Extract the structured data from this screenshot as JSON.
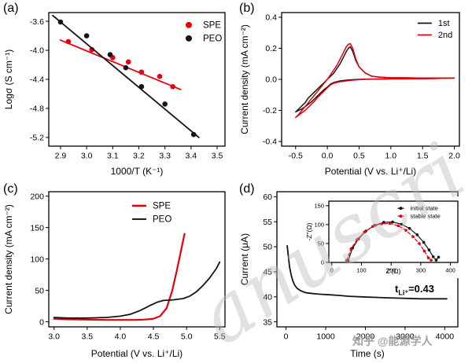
{
  "panels": {
    "a": {
      "label": "(a)"
    },
    "b": {
      "label": "(b)"
    },
    "c": {
      "label": "(c)"
    },
    "d": {
      "label": "(d)",
      "annotation": {
        "base": "t",
        "sub": "Li⁺",
        "rest": "=0.43"
      }
    }
  },
  "watermarks": {
    "diagonal": "anuscri",
    "credit": "知乎 @能源学人"
  },
  "chart_data": [
    {
      "id": "a",
      "type": "scatter",
      "xlabel": "1000/T (K⁻¹)",
      "ylabel": "Logσ (S cm⁻¹)",
      "xlim": [
        2.855,
        3.53
      ],
      "ylim": [
        -5.32,
        -3.48
      ],
      "xticks": [
        "2.9",
        "3.0",
        "3.1",
        "3.2",
        "3.3",
        "3.4",
        "3.5"
      ],
      "yticks": [
        "-3.6",
        "-4.0",
        "-4.4",
        "-4.8",
        "-5.2"
      ],
      "legend": {
        "position": "top-right",
        "entries": [
          {
            "label": "SPE",
            "color": "#e8000b",
            "marker": "circle"
          },
          {
            "label": "PEO",
            "color": "#141414",
            "marker": "circle"
          }
        ]
      },
      "series": [
        {
          "name": "SPE fit",
          "type": "line",
          "color": "#e8000b",
          "lw": 1.8,
          "x": [
            2.9,
            3.36
          ],
          "y": [
            -3.86,
            -4.54
          ]
        },
        {
          "name": "SPE",
          "type": "scatter",
          "color": "#e8000b",
          "x": [
            2.93,
            3.02,
            3.1,
            3.16,
            3.21,
            3.28,
            3.33
          ],
          "y": [
            -3.88,
            -3.99,
            -4.1,
            -4.16,
            -4.3,
            -4.36,
            -4.5
          ]
        },
        {
          "name": "PEO fit",
          "type": "line",
          "color": "#141414",
          "lw": 1.8,
          "x": [
            2.87,
            3.43
          ],
          "y": [
            -3.52,
            -5.2
          ]
        },
        {
          "name": "PEO",
          "type": "scatter",
          "color": "#141414",
          "x": [
            2.9,
            3.0,
            3.09,
            3.15,
            3.21,
            3.3,
            3.41
          ],
          "y": [
            -3.61,
            -3.8,
            -4.06,
            -4.24,
            -4.5,
            -4.74,
            -5.16
          ]
        }
      ]
    },
    {
      "id": "b",
      "type": "line",
      "xlabel": "Potential (V vs. Li⁺/Li)",
      "ylabel": "Current density (mA cm⁻²)",
      "xlim": [
        -0.72,
        2.08
      ],
      "ylim": [
        -0.43,
        0.43
      ],
      "xticks": [
        "-0.5",
        "0.0",
        "0.5",
        "1.0",
        "1.5",
        "2.0"
      ],
      "yticks": [
        "-0.4",
        "-0.2",
        "0.0",
        "0.2",
        "0.4"
      ],
      "legend": {
        "position": "top-right",
        "entries": [
          {
            "label": "1st",
            "color": "#141414",
            "marker": "line",
            "lw": 1.8
          },
          {
            "label": "2nd",
            "color": "#e8000b",
            "marker": "line",
            "lw": 1.8
          }
        ]
      },
      "series": [
        {
          "name": "1st",
          "type": "line",
          "color": "#141414",
          "lw": 1.5,
          "x": [
            -0.5,
            -0.45,
            -0.4,
            -0.35,
            -0.3,
            -0.25,
            -0.2,
            -0.15,
            -0.1,
            -0.05,
            0,
            0.05,
            0.1,
            0.15,
            0.2,
            0.25,
            0.3,
            0.33,
            0.36,
            0.4,
            0.45,
            0.5,
            0.6,
            0.7,
            0.8,
            1,
            1.2,
            1.5,
            2,
            1.5,
            1,
            0.8,
            0.6,
            0.5,
            0.4,
            0.3,
            0.2,
            0.1,
            0.05,
            0,
            -0.05,
            -0.1,
            -0.15,
            -0.2,
            -0.25,
            -0.3,
            -0.35,
            -0.4,
            -0.45,
            -0.5
          ],
          "y": [
            -0.21,
            -0.19,
            -0.17,
            -0.15,
            -0.12,
            -0.1,
            -0.08,
            -0.06,
            -0.04,
            -0.02,
            0,
            0.02,
            0.04,
            0.07,
            0.1,
            0.14,
            0.18,
            0.2,
            0.21,
            0.18,
            0.12,
            0.08,
            0.04,
            0.02,
            0.015,
            0.01,
            0.01,
            0.008,
            0.008,
            0.004,
            0.003,
            0.002,
            0.001,
            0,
            -0.002,
            -0.005,
            -0.01,
            -0.02,
            -0.03,
            -0.05,
            -0.065,
            -0.085,
            -0.105,
            -0.125,
            -0.145,
            -0.16,
            -0.175,
            -0.19,
            -0.2,
            -0.21
          ]
        },
        {
          "name": "2nd",
          "type": "line",
          "color": "#e8000b",
          "lw": 1.5,
          "x": [
            -0.5,
            -0.45,
            -0.4,
            -0.35,
            -0.3,
            -0.25,
            -0.2,
            -0.15,
            -0.1,
            -0.05,
            0,
            0.05,
            0.1,
            0.15,
            0.2,
            0.25,
            0.3,
            0.33,
            0.36,
            0.4,
            0.45,
            0.5,
            0.6,
            0.7,
            0.8,
            1,
            1.2,
            1.5,
            2,
            1.5,
            1,
            0.8,
            0.6,
            0.5,
            0.4,
            0.3,
            0.2,
            0.1,
            0.05,
            0,
            -0.05,
            -0.1,
            -0.15,
            -0.2,
            -0.25,
            -0.3,
            -0.35,
            -0.4,
            -0.45,
            -0.5
          ],
          "y": [
            -0.245,
            -0.225,
            -0.2,
            -0.175,
            -0.15,
            -0.125,
            -0.1,
            -0.075,
            -0.05,
            -0.025,
            0,
            0.03,
            0.06,
            0.09,
            0.13,
            0.17,
            0.21,
            0.225,
            0.23,
            0.2,
            0.13,
            0.08,
            0.04,
            0.02,
            0.015,
            0.01,
            0.01,
            0.008,
            0.008,
            0.004,
            0.003,
            0.002,
            0,
            -0.002,
            -0.005,
            -0.01,
            -0.015,
            -0.025,
            -0.035,
            -0.055,
            -0.075,
            -0.095,
            -0.115,
            -0.14,
            -0.16,
            -0.18,
            -0.2,
            -0.215,
            -0.23,
            -0.245
          ]
        }
      ]
    },
    {
      "id": "c",
      "type": "line",
      "xlabel": "Potential (V vs. Li⁺/Li)",
      "ylabel": "Current density (mA cm⁻²)",
      "xlim": [
        2.92,
        5.58
      ],
      "ylim": [
        -8,
        207
      ],
      "xticks": [
        "3.0",
        "3.5",
        "4.0",
        "4.5",
        "5.0",
        "5.5"
      ],
      "yticks": [
        "0",
        "50",
        "100",
        "150",
        "200"
      ],
      "legend": {
        "position": "upper-middle-right",
        "entries": [
          {
            "label": "SPE",
            "color": "#e8000b",
            "marker": "line",
            "lw": 2.5
          },
          {
            "label": "PEO",
            "color": "#141414",
            "marker": "line",
            "lw": 2
          }
        ]
      },
      "series": [
        {
          "name": "SPE",
          "type": "line",
          "color": "#e8000b",
          "lw": 2.2,
          "x": [
            3,
            3.2,
            3.5,
            3.8,
            4,
            4.2,
            4.35,
            4.5,
            4.6,
            4.7,
            4.78,
            4.85,
            4.92,
            4.97
          ],
          "y": [
            5,
            4,
            3.5,
            3,
            3,
            3,
            3.5,
            5,
            9,
            22,
            48,
            80,
            115,
            140
          ]
        },
        {
          "name": "PEO",
          "type": "line",
          "color": "#141414",
          "lw": 1.8,
          "x": [
            3,
            3.2,
            3.5,
            3.8,
            4,
            4.15,
            4.3,
            4.45,
            4.55,
            4.65,
            4.8,
            4.95,
            5.05,
            5.15,
            5.25,
            5.35,
            5.45,
            5.5
          ],
          "y": [
            7,
            6,
            6,
            7,
            9,
            12,
            18,
            26,
            31,
            34,
            35,
            37,
            41,
            48,
            58,
            70,
            85,
            95
          ]
        }
      ]
    },
    {
      "id": "d",
      "type": "line",
      "xlabel": "Time (s)",
      "ylabel": "Current (μA)",
      "xlim": [
        -230,
        4330
      ],
      "ylim": [
        34,
        61
      ],
      "xticks": [
        "0",
        "1000",
        "2000",
        "3000",
        "4000"
      ],
      "yticks": [
        "35",
        "40",
        "45",
        "50",
        "55",
        "60"
      ],
      "series": [
        {
          "name": "polarization current",
          "type": "line",
          "color": "#141414",
          "lw": 1.8,
          "x": [
            30,
            60,
            90,
            130,
            170,
            220,
            280,
            350,
            430,
            520,
            620,
            750,
            900,
            1100,
            1300,
            1600,
            1900,
            2200,
            2600,
            3000,
            3400,
            3800,
            4050
          ],
          "y": [
            50.2,
            48,
            46,
            44.3,
            43.2,
            42.3,
            41.7,
            41.3,
            41,
            40.8,
            40.7,
            40.6,
            40.5,
            40.4,
            40.3,
            40.1,
            40,
            39.9,
            39.8,
            39.7,
            39.6,
            39.6,
            39.6
          ]
        }
      ]
    },
    {
      "id": "inset",
      "type": "line",
      "xlabel": "Z'(Ω)",
      "ylabel": "-Z''(Ω)",
      "xlim": [
        -10,
        425
      ],
      "ylim": [
        0,
        162
      ],
      "xticks": [
        "0",
        "100",
        "200",
        "300",
        "400"
      ],
      "yticks": [
        "0",
        "50",
        "100",
        "150"
      ],
      "legend": {
        "position": "top-right",
        "entries": [
          {
            "label": "initial state",
            "color": "#141414",
            "marker": "line-dot",
            "lw": 1.3
          },
          {
            "label": "stable state",
            "color": "#e8000b",
            "marker": "line-dot",
            "lw": 1.3,
            "dash": true
          }
        ]
      },
      "series": [
        {
          "name": "initial state",
          "type": "line",
          "color": "#141414",
          "lw": 1.2,
          "markers": true,
          "x": [
            55,
            70,
            90,
            115,
            145,
            175,
            205,
            235,
            262,
            288,
            310,
            328,
            342,
            352,
            360
          ],
          "y": [
            5,
            38,
            62,
            83,
            98,
            106,
            107,
            101,
            90,
            73,
            53,
            33,
            15,
            6,
            14
          ]
        },
        {
          "name": "stable state",
          "type": "line",
          "color": "#e8000b",
          "lw": 1.2,
          "dash": true,
          "markers": true,
          "x": [
            50,
            65,
            85,
            110,
            138,
            168,
            196,
            224,
            250,
            274,
            295,
            312,
            326,
            335
          ],
          "y": [
            5,
            36,
            60,
            80,
            95,
            102,
            103,
            97,
            85,
            68,
            50,
            30,
            12,
            6
          ]
        }
      ]
    }
  ]
}
